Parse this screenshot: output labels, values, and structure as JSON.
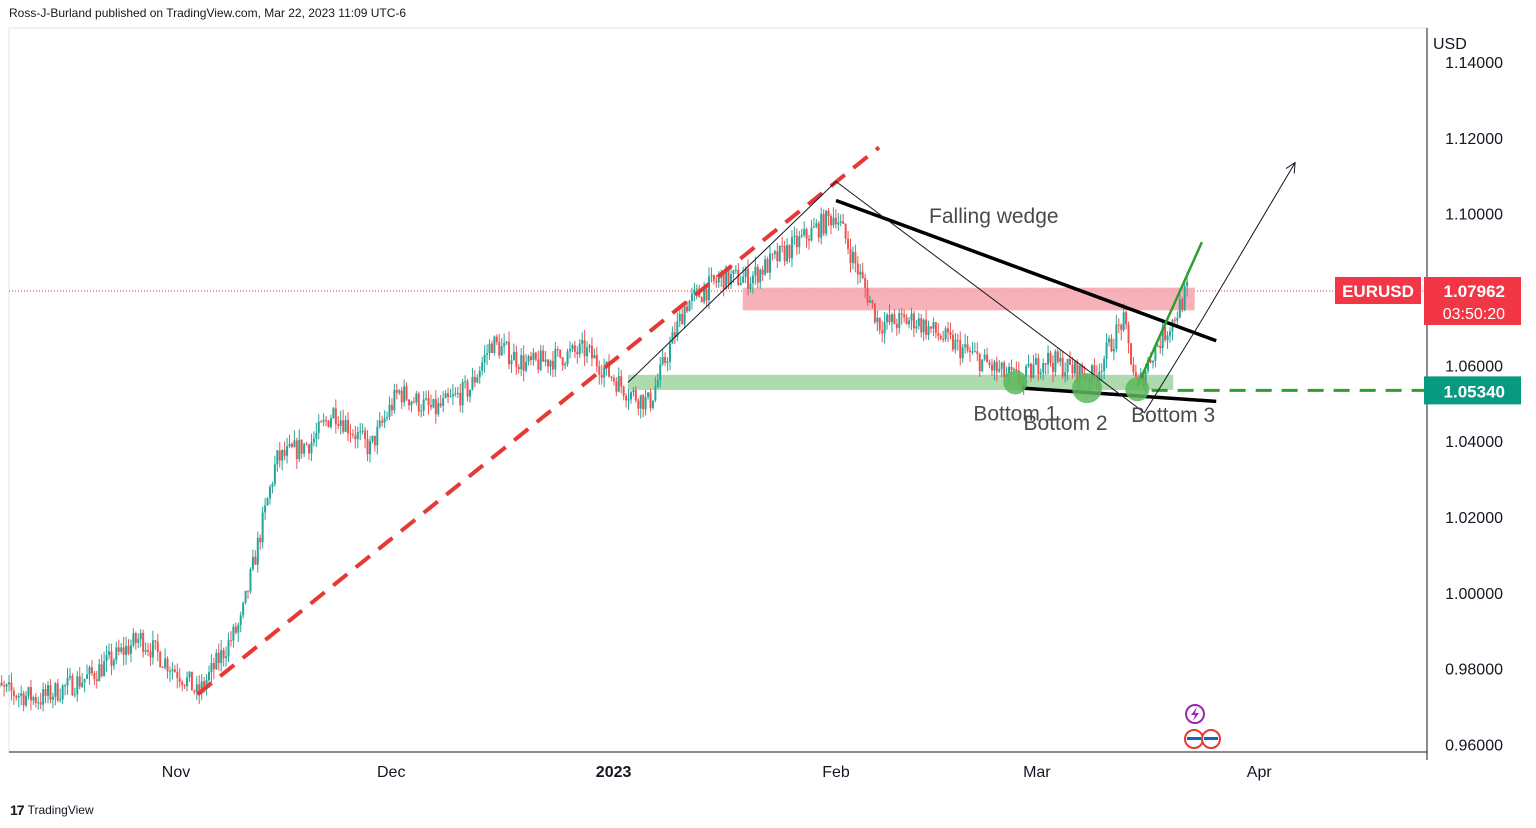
{
  "header": {
    "publisher_line": "Ross-J-Burland published on TradingView.com, Mar 22, 2023 11:09 UTC-6"
  },
  "footer": {
    "brand": "TradingView",
    "logo_glyph": "17"
  },
  "colors": {
    "up": "#26a69a",
    "down": "#ef5350",
    "trend_red": "#e53935",
    "resistance_zone": "#f4a4ac",
    "support_zone": "#9fd59f",
    "bottom_circle": "#5cb85c",
    "green_line": "#2e9e2e",
    "label_red": "#f23645",
    "label_green": "#089981"
  },
  "chart_data": {
    "type": "candlestick",
    "symbol": "EURUSD",
    "currency_label": "USD",
    "ylim": [
      0.958,
      1.149
    ],
    "y_ticks": [
      {
        "value": 1.14,
        "label": "1.14000"
      },
      {
        "value": 1.12,
        "label": "1.12000"
      },
      {
        "value": 1.1,
        "label": "1.10000"
      },
      {
        "value": 1.06,
        "label": "1.06000"
      },
      {
        "value": 1.04,
        "label": "1.04000"
      },
      {
        "value": 1.02,
        "label": "1.02000"
      },
      {
        "value": 1.0,
        "label": "1.00000"
      },
      {
        "value": 0.98,
        "label": "0.98000"
      },
      {
        "value": 0.96,
        "label": "0.96000"
      }
    ],
    "x_ticks": [
      {
        "date": "2022-11-01",
        "label": "Nov"
      },
      {
        "date": "2022-12-01",
        "label": "Dec"
      },
      {
        "date": "2023-01-01",
        "label": "2023"
      },
      {
        "date": "2023-02-01",
        "label": "Feb"
      },
      {
        "date": "2023-03-01",
        "label": "Mar"
      },
      {
        "date": "2023-04-01",
        "label": "Apr"
      }
    ],
    "price_path": [
      [
        "2022-10-06",
        0.975
      ],
      [
        "2022-10-13",
        0.972
      ],
      [
        "2022-10-20",
        0.978
      ],
      [
        "2022-10-27",
        0.988
      ],
      [
        "2022-11-03",
        0.976
      ],
      [
        "2022-11-04",
        0.973
      ],
      [
        "2022-11-10",
        0.992
      ],
      [
        "2022-11-15",
        1.035
      ],
      [
        "2022-11-20",
        1.04
      ],
      [
        "2022-11-23",
        1.048
      ],
      [
        "2022-11-28",
        1.038
      ],
      [
        "2022-12-02",
        1.053
      ],
      [
        "2022-12-07",
        1.048
      ],
      [
        "2022-12-12",
        1.054
      ],
      [
        "2022-12-15",
        1.066
      ],
      [
        "2022-12-20",
        1.06
      ],
      [
        "2022-12-28",
        1.064
      ],
      [
        "2023-01-03",
        1.053
      ],
      [
        "2023-01-06",
        1.05
      ],
      [
        "2023-01-11",
        1.076
      ],
      [
        "2023-01-16",
        1.083
      ],
      [
        "2023-01-20",
        1.083
      ],
      [
        "2023-01-25",
        1.09
      ],
      [
        "2023-02-01",
        1.1
      ],
      [
        "2023-02-03",
        1.09
      ],
      [
        "2023-02-07",
        1.071
      ],
      [
        "2023-02-12",
        1.072
      ],
      [
        "2023-02-17",
        1.066
      ],
      [
        "2023-02-24",
        1.058
      ],
      [
        "2023-02-27",
        1.056
      ],
      [
        "2023-03-02",
        1.062
      ],
      [
        "2023-03-07",
        1.058
      ],
      [
        "2023-03-09",
        1.057
      ],
      [
        "2023-03-13",
        1.072
      ],
      [
        "2023-03-15",
        1.054
      ],
      [
        "2023-03-17",
        1.063
      ],
      [
        "2023-03-20",
        1.072
      ],
      [
        "2023-03-22",
        1.08
      ]
    ],
    "last_price": {
      "value": 1.07962,
      "label": "1.07962",
      "countdown": "03:50:20"
    },
    "support_level": {
      "value": 1.0534,
      "label": "1.05340"
    },
    "zones": [
      {
        "name": "resistance",
        "from_date": "2023-01-19",
        "to_date": "2023-03-23",
        "y_low": 1.0745,
        "y_high": 1.0805
      },
      {
        "name": "support",
        "from_date": "2023-01-03",
        "to_date": "2023-03-20",
        "y_low": 1.0535,
        "y_high": 1.0575
      }
    ],
    "trendlines": [
      {
        "name": "rising-support",
        "style": "red-dashed",
        "from": [
          "2022-11-04",
          0.9732
        ],
        "to": [
          "2023-02-07",
          1.1175
        ]
      },
      {
        "name": "wedge-upper",
        "style": "black-thick",
        "from": [
          "2023-02-01",
          1.1035
        ],
        "to": [
          "2023-03-26",
          1.0665
        ]
      },
      {
        "name": "wedge-lower",
        "style": "black-thick",
        "from": [
          "2023-02-27",
          1.054
        ],
        "to": [
          "2023-03-26",
          1.0505
        ]
      },
      {
        "name": "support-extension",
        "style": "green-dashed",
        "from": [
          "2023-03-17",
          1.0534
        ],
        "to": [
          "2023-04-29",
          1.0534
        ]
      },
      {
        "name": "breakout",
        "style": "green-solid",
        "from": [
          "2023-03-15",
          1.0545
        ],
        "to": [
          "2023-03-24",
          1.0925
        ]
      }
    ],
    "path_drawing": [
      [
        "2023-01-03",
        1.0555
      ],
      [
        "2023-02-01",
        1.1085
      ],
      [
        "2023-03-16",
        1.0475
      ],
      [
        "2023-03-24",
        1.072
      ],
      [
        "2023-04-06",
        1.1135
      ]
    ],
    "annotations": [
      {
        "text": "Falling wedge",
        "date": "2023-02-23",
        "value": 1.0975
      },
      {
        "text": "Bottom 1",
        "date": "2023-02-26",
        "value": 1.0455
      },
      {
        "text": "Bottom 2",
        "date": "2023-03-05",
        "value": 1.043
      },
      {
        "text": "Bottom 3",
        "date": "2023-03-20",
        "value": 1.045
      }
    ],
    "bottoms": [
      {
        "name": "bottom-1",
        "date": "2023-02-26",
        "value": 1.0555
      },
      {
        "name": "bottom-2",
        "date": "2023-03-08",
        "value": 1.054
      },
      {
        "name": "bottom-3",
        "date": "2023-03-15",
        "value": 1.0537
      }
    ]
  }
}
